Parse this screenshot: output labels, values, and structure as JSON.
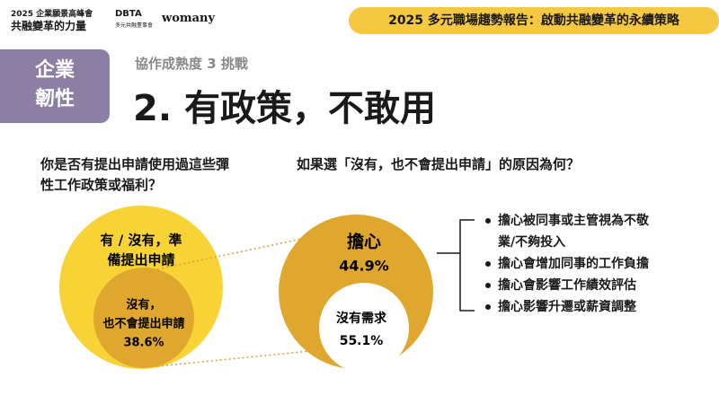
{
  "header": {
    "event": "2025 企業願景高峰會",
    "slogan": "共融變革的力量",
    "partner": "DBTA",
    "partner_sub": "多元共融董事會",
    "brand": "womany",
    "report": "2025 多元職場趨勢報告：啟動共融變革的永續策略"
  },
  "section": {
    "tag_lines": [
      "企業",
      "韌性"
    ],
    "kicker": "協作成熟度 3 挑戰",
    "title": "2. 有政策，不敢用"
  },
  "left": {
    "question_lines": [
      "你是否有提出申請使用過這些彈",
      "性工作政策或福利？"
    ],
    "outer_label_lines": [
      "有 / 沒有，準",
      "備提出申請"
    ],
    "inner_label_lines": [
      "沒有，",
      "也不會提出申請"
    ],
    "inner_value": "38.6%"
  },
  "right": {
    "question": "如果選「沒有，也不會提出申請」的原因為何？",
    "outer_label": "擔心",
    "outer_value": "44.9%",
    "inner_label": "沒有需求",
    "inner_value": "55.1%",
    "reasons": [
      [
        "擔心被同事或主管視為不敬",
        "業/不夠投入"
      ],
      [
        "擔心會增加同事的工作負擔"
      ],
      [
        "擔心會影響工作績效評估"
      ],
      [
        "擔心影響升遷或薪資調整"
      ]
    ]
  }
}
